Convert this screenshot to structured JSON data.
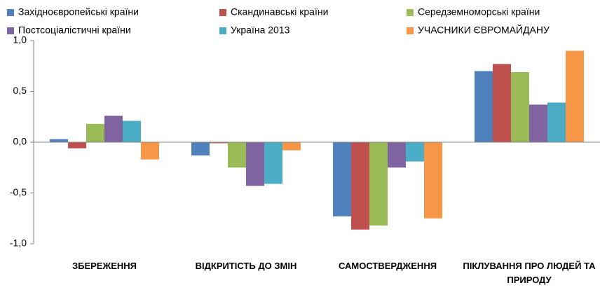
{
  "chart_data": {
    "type": "bar",
    "categories": [
      "ЗБЕРЕЖЕННЯ",
      "ВІДКРИТІСТЬ ДО ЗМІН",
      "САМОСТВЕРДЖЕННЯ",
      "ПІКЛУВАННЯ ПРО ЛЮДЕЙ ТА ПРИРОДУ"
    ],
    "series": [
      {
        "name": "Західноєвропейські країни",
        "color": "#4f81bd",
        "values": [
          0.03,
          -0.13,
          -0.73,
          0.7
        ]
      },
      {
        "name": "Скандинавські країни",
        "color": "#c0504d",
        "values": [
          -0.06,
          -0.01,
          -0.86,
          0.77
        ]
      },
      {
        "name": "Середземноморські країни",
        "color": "#9bbb59",
        "values": [
          0.18,
          -0.25,
          -0.82,
          0.69
        ]
      },
      {
        "name": "Постсоціалістичні країни",
        "color": "#8064a2",
        "values": [
          0.26,
          -0.43,
          -0.25,
          0.37
        ]
      },
      {
        "name": "Україна 2013",
        "color": "#4bacc6",
        "values": [
          0.21,
          -0.41,
          -0.19,
          0.39
        ]
      },
      {
        "name": "УЧАСНИКИ ЄВРОМАЙДАНУ",
        "color": "#f79646",
        "values": [
          -0.17,
          -0.08,
          -0.75,
          0.9
        ]
      }
    ],
    "ylim": [
      -1,
      1
    ],
    "yticks": [
      {
        "value": -1,
        "label": "-1,0"
      },
      {
        "value": -0.5,
        "label": "-0,5"
      },
      {
        "value": 0,
        "label": "0,0"
      },
      {
        "value": 0.5,
        "label": "0,5"
      },
      {
        "value": 1,
        "label": "1,0"
      }
    ],
    "grid": false,
    "legend": "top"
  }
}
